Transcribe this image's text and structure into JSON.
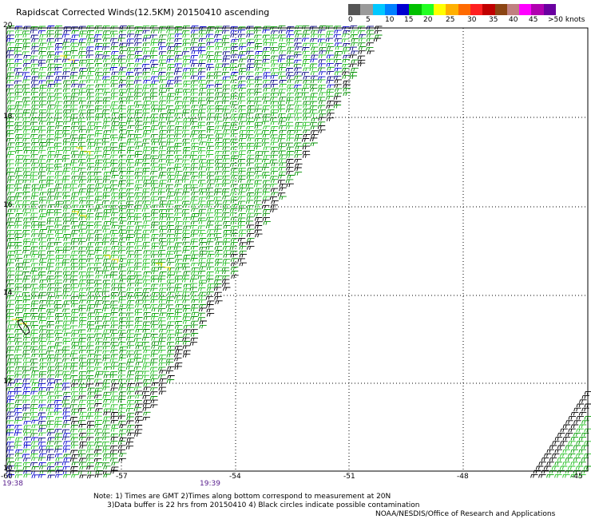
{
  "header": {
    "title": "Rapidscat Corrected Winds(12.5KM) 20150410 ascending"
  },
  "colorbar": {
    "colors": [
      "#555555",
      "#9a9a9a",
      "#00c8ff",
      "#0080ff",
      "#0000d0",
      "#00c000",
      "#22ff22",
      "#ffff00",
      "#ffb000",
      "#ff6a00",
      "#ff2020",
      "#c00000",
      "#8b4513",
      "#c08080",
      "#ff00ff",
      "#b000b0",
      "#6a00a0"
    ],
    "tick_labels": [
      "0",
      "5",
      "10",
      "15",
      "20",
      "25",
      "30",
      "35",
      "40",
      "45",
      ">50 knots"
    ]
  },
  "map": {
    "lat_labels": [
      "20",
      "18",
      "16",
      "14",
      "12",
      "10"
    ],
    "lon_labels": [
      "-60",
      "-57",
      "-54",
      "-51",
      "-48",
      "-45"
    ],
    "times": [
      "19:38",
      "19:39"
    ]
  },
  "footer": {
    "note_line1": "Note: 1) Times are GMT 2)Times along bottom correspond to measurement at 20N",
    "note_line2": "      3)Data buffer is 22 hrs from 20150410 4) Black circles indicate possible contamination",
    "credit": "NOAA/NESDIS/Office of Research and Applications"
  }
}
